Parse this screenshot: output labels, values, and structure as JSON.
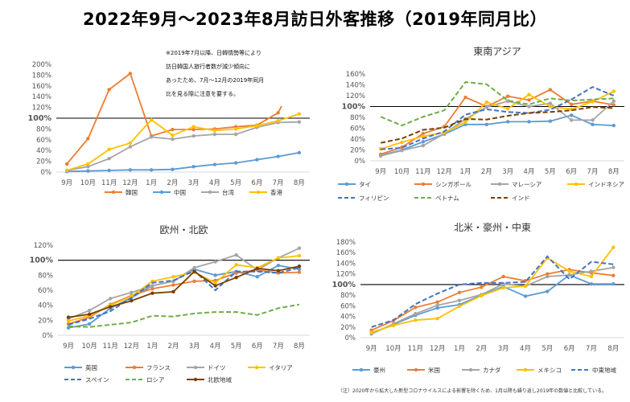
{
  "title": "2022年9月～2023年8月訪日外客推移（2019年同月比）",
  "footnote": "（注）2020年から拡大した新型コロナウイルスによる影響を除くため、1月以降も繰り返し2019年の数値と比較している。",
  "chart_data": [
    {
      "type": "line",
      "title": "東アジア",
      "categories": [
        "9月",
        "10月",
        "11月",
        "12月",
        "1月",
        "2月",
        "3月",
        "4月",
        "5月",
        "6月",
        "7月",
        "8月"
      ],
      "ylim": [
        0,
        200
      ],
      "yticks": [
        0,
        20,
        40,
        60,
        80,
        100,
        120,
        140,
        160,
        180,
        200
      ],
      "reference_line": 100,
      "legend_position": "bottom",
      "annotation": [
        "※2019年7月以降、日韓情勢等により",
        "訪日韓国人旅行者数が減少傾向に",
        "あったため、7月～12月の2019年同月",
        "比を見る際に注意を要する。"
      ],
      "series": [
        {
          "name": "韓国",
          "color": "#ED7D31",
          "dash": false,
          "values": [
            15,
            62,
            153,
            183,
            67,
            79,
            79,
            80,
            84,
            87,
            110,
            185
          ]
        },
        {
          "name": "中国",
          "color": "#5B9BD5",
          "dash": false,
          "values": [
            1,
            2,
            3,
            4,
            4,
            5,
            10,
            14,
            17,
            23,
            29,
            36
          ]
        },
        {
          "name": "台湾",
          "color": "#A5A5A5",
          "dash": false,
          "values": [
            3,
            10,
            25,
            47,
            65,
            61,
            67,
            70,
            70,
            83,
            92,
            93
          ]
        },
        {
          "name": "香港",
          "color": "#FFC000",
          "dash": false,
          "values": [
            3,
            15,
            42,
            54,
            97,
            68,
            84,
            77,
            80,
            86,
            95,
            108
          ]
        }
      ]
    },
    {
      "type": "line",
      "title": "東南アジア",
      "categories": [
        "9月",
        "10月",
        "11月",
        "12月",
        "1月",
        "2月",
        "3月",
        "4月",
        "5月",
        "6月",
        "7月",
        "8月"
      ],
      "ylim": [
        0,
        160
      ],
      "yticks": [
        0,
        20,
        40,
        60,
        80,
        100,
        120,
        140,
        160
      ],
      "reference_line": 100,
      "legend_position": "bottom",
      "series": [
        {
          "name": "タイ",
          "color": "#5B9BD5",
          "dash": false,
          "values": [
            10,
            20,
            35,
            49,
            67,
            67,
            72,
            72,
            73,
            84,
            67,
            65
          ]
        },
        {
          "name": "シンガポール",
          "color": "#ED7D31",
          "dash": false,
          "values": [
            12,
            25,
            50,
            63,
            117,
            100,
            119,
            112,
            131,
            104,
            110,
            103
          ]
        },
        {
          "name": "マレーシア",
          "color": "#A5A5A5",
          "dash": false,
          "values": [
            9,
            19,
            28,
            50,
            77,
            99,
            110,
            100,
            106,
            75,
            75,
            110
          ]
        },
        {
          "name": "インドネシア",
          "color": "#FFC000",
          "dash": false,
          "values": [
            22,
            34,
            45,
            52,
            71,
            108,
            96,
            122,
            100,
            95,
            109,
            128
          ]
        },
        {
          "name": "フィリピン",
          "color": "#4472C4",
          "dash": true,
          "values": [
            21,
            24,
            41,
            54,
            85,
            95,
            90,
            88,
            94,
            113,
            136,
            120
          ]
        },
        {
          "name": "ベトナム",
          "color": "#70AD47",
          "dash": true,
          "values": [
            81,
            65,
            81,
            93,
            145,
            141,
            111,
            104,
            115,
            111,
            113,
            115
          ]
        },
        {
          "name": "インド",
          "color": "#7B3F00",
          "dash": true,
          "values": [
            33,
            41,
            57,
            61,
            77,
            76,
            83,
            88,
            90,
            93,
            99,
            97
          ]
        }
      ]
    },
    {
      "type": "line",
      "title": "欧州・北欧",
      "categories": [
        "9月",
        "10月",
        "11月",
        "12月",
        "1月",
        "2月",
        "3月",
        "4月",
        "5月",
        "6月",
        "7月",
        "8月"
      ],
      "ylim": [
        0,
        120
      ],
      "yticks": [
        0,
        20,
        40,
        60,
        80,
        100,
        120
      ],
      "reference_line": 100,
      "legend_position": "bottom",
      "series": [
        {
          "name": "英国",
          "color": "#5B9BD5",
          "dash": false,
          "values": [
            10,
            15,
            36,
            50,
            66,
            72,
            88,
            80,
            85,
            78,
            93,
            88
          ]
        },
        {
          "name": "フランス",
          "color": "#ED7D31",
          "dash": false,
          "values": [
            15,
            24,
            41,
            53,
            62,
            67,
            72,
            73,
            83,
            87,
            83,
            84
          ]
        },
        {
          "name": "ドイツ",
          "color": "#A5A5A5",
          "dash": false,
          "values": [
            22,
            33,
            49,
            57,
            66,
            72,
            90,
            98,
            107,
            87,
            103,
            116
          ]
        },
        {
          "name": "イタリア",
          "color": "#FFC000",
          "dash": false,
          "values": [
            19,
            26,
            40,
            52,
            72,
            78,
            84,
            70,
            94,
            90,
            103,
            106
          ]
        },
        {
          "name": "スペイン",
          "color": "#4472C4",
          "dash": true,
          "values": [
            14,
            22,
            32,
            50,
            70,
            73,
            86,
            60,
            85,
            85,
            83,
            90
          ]
        },
        {
          "name": "ロシア",
          "color": "#70AD47",
          "dash": true,
          "values": [
            12,
            11,
            14,
            17,
            26,
            25,
            29,
            31,
            31,
            27,
            36,
            41
          ]
        },
        {
          "name": "北欧地域",
          "color": "#7B3F00",
          "dash": false,
          "values": [
            24,
            28,
            38,
            46,
            56,
            58,
            85,
            66,
            77,
            89,
            86,
            92
          ]
        }
      ]
    },
    {
      "type": "line",
      "title": "北米・豪州・中東",
      "categories": [
        "9月",
        "10月",
        "11月",
        "12月",
        "1月",
        "2月",
        "3月",
        "4月",
        "5月",
        "6月",
        "7月",
        "8月"
      ],
      "ylim": [
        0,
        180
      ],
      "yticks": [
        0,
        20,
        40,
        60,
        80,
        100,
        120,
        140,
        160,
        180
      ],
      "reference_line": 100,
      "legend_position": "bottom",
      "series": [
        {
          "name": "豪州",
          "color": "#5B9BD5",
          "dash": false,
          "values": [
            8,
            25,
            42,
            56,
            62,
            80,
            96,
            78,
            87,
            118,
            101,
            101
          ]
        },
        {
          "name": "米国",
          "color": "#ED7D31",
          "dash": false,
          "values": [
            14,
            32,
            57,
            67,
            85,
            95,
            115,
            107,
            120,
            128,
            122,
            117
          ]
        },
        {
          "name": "カナダ",
          "color": "#A5A5A5",
          "dash": false,
          "values": [
            7,
            26,
            45,
            61,
            70,
            81,
            101,
            97,
            115,
            118,
            125,
            132
          ]
        },
        {
          "name": "メキシコ",
          "color": "#FFC000",
          "dash": false,
          "values": [
            10,
            23,
            33,
            36,
            59,
            79,
            94,
            97,
            150,
            125,
            115,
            170
          ]
        },
        {
          "name": "中東地域",
          "color": "#4472C4",
          "dash": true,
          "values": [
            20,
            33,
            63,
            83,
            100,
            103,
            103,
            105,
            153,
            110,
            143,
            138
          ]
        }
      ]
    }
  ]
}
